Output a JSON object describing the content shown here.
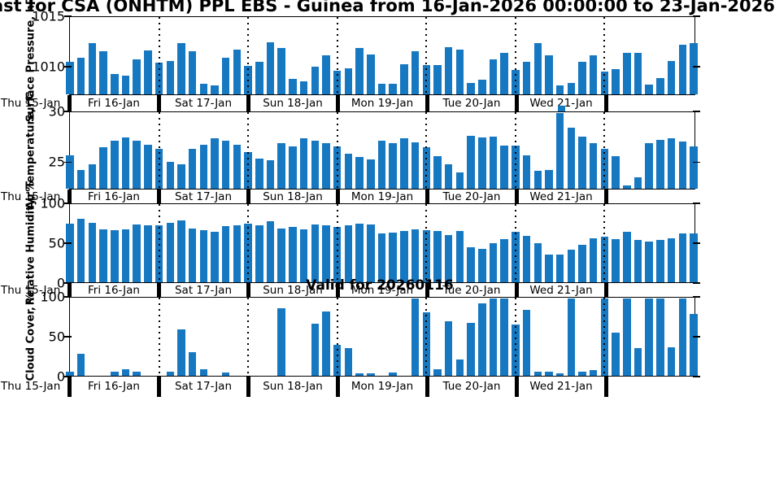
{
  "title": "ast for CSA (ONHTM) PPL EBS  - Guinea from 16-Jan-2026 00:00:00 to 23-Jan-2026",
  "annotation": "Valid for 20260116",
  "colors": {
    "bar": "#1778c2",
    "axis": "#000000",
    "background": "#ffffff"
  },
  "x_axis": {
    "start_tick_label": "Thu 15-Jan",
    "day_labels": [
      "Fri 16-Jan",
      "Sat 17-Jan",
      "Sun 18-Jan",
      "Mon 19-Jan",
      "Tue 20-Jan",
      "Wed 21-Jan",
      ""
    ],
    "start": "16-Jan-2026 00:00",
    "end": "23-Jan-2026 00:00",
    "step_hours": 3,
    "points_per_day": 8
  },
  "chart_data": [
    {
      "type": "bar",
      "ylabel": "Surface Pressure, hPa",
      "yticks": [
        1015,
        1010
      ],
      "ylim": [
        1007.2,
        1015
      ],
      "values": [
        1010.5,
        1010.9,
        1012.4,
        1011.6,
        1009.3,
        1009.1,
        1010.8,
        1011.7,
        1010.4,
        1010.6,
        1012.4,
        1011.6,
        1008.3,
        1008.1,
        1010.9,
        1011.8,
        1010.1,
        1010.5,
        1012.5,
        1011.9,
        1008.8,
        1008.5,
        1010.0,
        1011.2,
        1009.6,
        1009.9,
        1011.9,
        1011.3,
        1008.3,
        1008.3,
        1010.3,
        1011.6,
        1010.2,
        1010.2,
        1012.0,
        1011.8,
        1008.4,
        1008.7,
        1010.8,
        1011.4,
        1009.7,
        1010.5,
        1012.4,
        1011.2,
        1008.1,
        1008.4,
        1010.5,
        1011.2,
        1009.5,
        1009.8,
        1011.4,
        1011.4,
        1008.2,
        1008.9,
        1010.6,
        1012.3,
        1012.4
      ]
    },
    {
      "type": "bar",
      "ylabel": "Air Temperature, °C",
      "yticks": [
        30,
        25
      ],
      "ylim": [
        22.3,
        30
      ],
      "values": [
        25.7,
        24.2,
        24.8,
        26.5,
        27.2,
        27.5,
        27.2,
        26.8,
        26.4,
        25.0,
        24.8,
        26.4,
        26.8,
        27.4,
        27.2,
        26.8,
        26.0,
        25.4,
        25.2,
        26.9,
        26.6,
        27.4,
        27.2,
        26.9,
        26.6,
        25.9,
        25.5,
        25.3,
        27.2,
        26.9,
        27.4,
        27.0,
        26.5,
        25.6,
        24.8,
        24.0,
        27.7,
        27.5,
        27.6,
        26.7,
        26.7,
        25.7,
        24.1,
        24.2,
        30.1,
        28.5,
        27.6,
        26.9,
        26.4,
        25.6,
        22.6,
        23.5,
        26.9,
        27.3,
        27.4,
        27.1,
        26.6
      ]
    },
    {
      "type": "bar",
      "ylabel": "Relative Humidity, %",
      "yticks": [
        100,
        50,
        0
      ],
      "ylim": [
        0,
        100
      ],
      "values": [
        76,
        82,
        77,
        69,
        67,
        69,
        75,
        74,
        74,
        77,
        80,
        70,
        67,
        65,
        73,
        74,
        76,
        74,
        79,
        70,
        72,
        68,
        75,
        74,
        72,
        74,
        76,
        75,
        63,
        64,
        66,
        68,
        67,
        66,
        61,
        66,
        45,
        43,
        51,
        56,
        65,
        60,
        51,
        36,
        36,
        42,
        49,
        57,
        59,
        56,
        65,
        55,
        53,
        55,
        57,
        63,
        63
      ]
    },
    {
      "type": "bar",
      "ylabel": "Cloud Cover, %",
      "yticks": [
        100,
        50,
        0
      ],
      "ylim": [
        0,
        100
      ],
      "values": [
        5,
        28,
        0,
        0,
        5,
        8,
        5,
        0,
        0,
        5,
        60,
        31,
        8,
        0,
        4,
        0,
        0,
        0,
        0,
        87,
        0,
        0,
        67,
        83,
        40,
        36,
        3,
        3,
        0,
        4,
        0,
        100,
        82,
        9,
        71,
        21,
        68,
        94,
        100,
        100,
        66,
        85,
        5,
        5,
        3,
        100,
        5,
        7,
        100,
        56,
        100,
        36,
        100,
        100,
        37,
        100,
        80
      ]
    }
  ]
}
